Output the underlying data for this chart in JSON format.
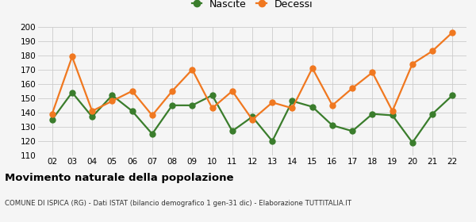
{
  "years": [
    2,
    3,
    4,
    5,
    6,
    7,
    8,
    9,
    10,
    11,
    12,
    13,
    14,
    15,
    16,
    17,
    18,
    19,
    20,
    21,
    22
  ],
  "nascite": [
    135,
    154,
    137,
    152,
    141,
    125,
    145,
    145,
    152,
    127,
    137,
    120,
    148,
    144,
    131,
    127,
    139,
    138,
    119,
    139,
    152
  ],
  "decessi": [
    139,
    179,
    141,
    148,
    155,
    138,
    155,
    170,
    143,
    155,
    135,
    147,
    143,
    171,
    145,
    157,
    168,
    141,
    174,
    183,
    196
  ],
  "nascite_color": "#3a7d2c",
  "decessi_color": "#f07820",
  "ylim": [
    110,
    200
  ],
  "yticks": [
    110,
    120,
    130,
    140,
    150,
    160,
    170,
    180,
    190,
    200
  ],
  "title": "Movimento naturale della popolazione",
  "subtitle": "COMUNE DI ISPICA (RG) - Dati ISTAT (bilancio demografico 1 gen-31 dic) - Elaborazione TUTTITALIA.IT",
  "legend_nascite": "Nascite",
  "legend_decessi": "Decessi",
  "bg_color": "#f5f5f5",
  "grid_color": "#cccccc",
  "marker_size": 5,
  "linewidth": 1.6
}
